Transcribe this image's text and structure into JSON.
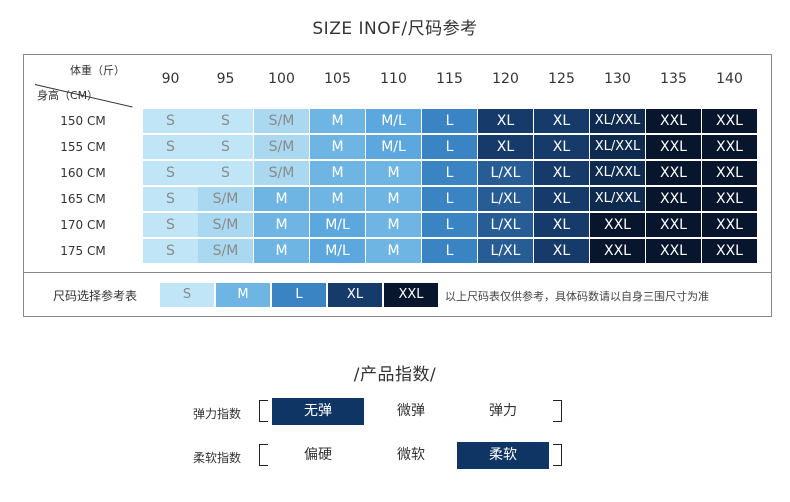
{
  "size_title": "SIZE INOF/尺码参考",
  "corner": {
    "weight": "体重（斤）",
    "height": "身高（CM）"
  },
  "weights": [
    "90",
    "95",
    "100",
    "105",
    "110",
    "115",
    "120",
    "125",
    "130",
    "135",
    "140"
  ],
  "rows": [
    {
      "height": "150 CM",
      "sizes": [
        "S",
        "S",
        "S/M",
        "M",
        "M/L",
        "L",
        "XL",
        "XL",
        "XL/XXL",
        "XXL",
        "XXL"
      ]
    },
    {
      "height": "155 CM",
      "sizes": [
        "S",
        "S",
        "S/M",
        "M",
        "M/L",
        "L",
        "XL",
        "XL",
        "XL/XXL",
        "XXL",
        "XXL"
      ]
    },
    {
      "height": "160 CM",
      "sizes": [
        "S",
        "S",
        "S/M",
        "M",
        "M",
        "L",
        "L/XL",
        "XL",
        "XL/XXL",
        "XXL",
        "XXL"
      ]
    },
    {
      "height": "165 CM",
      "sizes": [
        "S",
        "S/M",
        "M",
        "M",
        "M",
        "L",
        "L/XL",
        "XL",
        "XL/XXL",
        "XXL",
        "XXL"
      ]
    },
    {
      "height": "170 CM",
      "sizes": [
        "S",
        "S/M",
        "M",
        "M/L",
        "M",
        "L",
        "L/XL",
        "XL",
        "XXL",
        "XXL",
        "XXL"
      ]
    },
    {
      "height": "175 CM",
      "sizes": [
        "S",
        "S/M",
        "M",
        "M/L",
        "M",
        "L",
        "L/XL",
        "XL",
        "XXL",
        "XXL",
        "XXL"
      ]
    }
  ],
  "legend": {
    "label": "尺码选择参考表",
    "items": [
      "S",
      "M",
      "L",
      "XL",
      "XXL"
    ],
    "note": "以上尺码表仅供参考，具体码数请以自身三围尺寸为准"
  },
  "index_title": "/产品指数/",
  "indices": [
    {
      "label": "弹力指数",
      "options": [
        "无弹",
        "微弹",
        "弹力"
      ],
      "selected": 0
    },
    {
      "label": "柔软指数",
      "options": [
        "偏硬",
        "微软",
        "柔软"
      ],
      "selected": 2
    }
  ],
  "colors": {
    "S": "#bfe5f7",
    "S/M": "#a9d8f0",
    "M": "#6fb5e4",
    "M/L": "#5ca7dd",
    "L": "#3b84c4",
    "L/XL": "#285c95",
    "XL": "#163b6b",
    "XL/XXL": "#0e2a4f",
    "XXL": "#07162d",
    "selected": "#0e3563"
  }
}
